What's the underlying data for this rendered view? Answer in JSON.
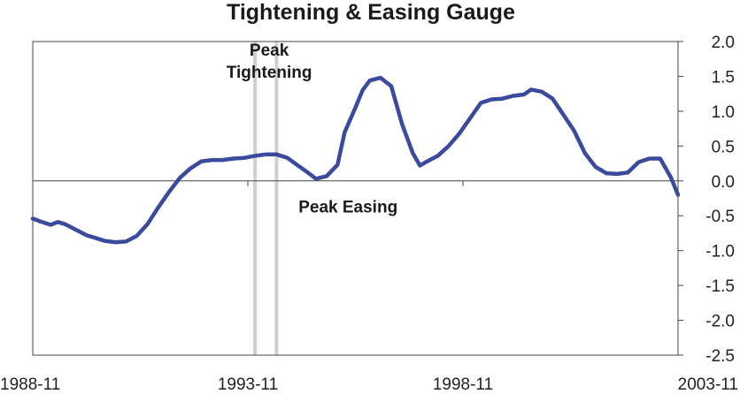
{
  "chart_data": {
    "type": "line",
    "title": "Tightening & Easing Gauge",
    "xlabel": "",
    "ylabel": "",
    "x_start": "1988-11",
    "x_end": "2003-11",
    "x_tick_labels": [
      "1988-11",
      "1993-11",
      "1998-11",
      "2003-11"
    ],
    "ylim": [
      -2.5,
      2.0
    ],
    "y_ticks": [
      2.0,
      1.5,
      1.0,
      0.5,
      0.0,
      -0.5,
      -1.0,
      -1.5,
      -2.0,
      -2.5
    ],
    "y_tick_labels": [
      "2.0",
      "1.5",
      "1.0",
      "0.5",
      "0.0",
      "-0.5",
      "-1.0",
      "-1.5",
      "-2.0",
      "-2.5"
    ],
    "grid": false,
    "zero_line": true,
    "line_color": "#3a4a9c",
    "band_color": "#d0d0d0",
    "vertical_markers": [
      "1994-01",
      "1994-07"
    ],
    "annotations": [
      {
        "text": "Peak",
        "x": "1994-01",
        "y": 1.8
      },
      {
        "text": "Tightening",
        "x": "1994-01",
        "y": 1.48
      },
      {
        "text": "Peak Easing",
        "x": "1995-11",
        "y": -0.45
      }
    ],
    "series": [
      {
        "points": [
          [
            "1988-11",
            -0.54
          ],
          [
            "1989-01",
            -0.58
          ],
          [
            "1989-04",
            -0.63
          ],
          [
            "1989-06",
            -0.59
          ],
          [
            "1989-08",
            -0.62
          ],
          [
            "1989-11",
            -0.7
          ],
          [
            "1990-02",
            -0.78
          ],
          [
            "1990-04",
            -0.81
          ],
          [
            "1990-07",
            -0.86
          ],
          [
            "1990-10",
            -0.88
          ],
          [
            "1991-01",
            -0.87
          ],
          [
            "1991-04",
            -0.79
          ],
          [
            "1991-07",
            -0.62
          ],
          [
            "1991-10",
            -0.38
          ],
          [
            "1992-01",
            -0.16
          ],
          [
            "1992-04",
            0.04
          ],
          [
            "1992-07",
            0.18
          ],
          [
            "1992-10",
            0.28
          ],
          [
            "1993-01",
            0.3
          ],
          [
            "1993-04",
            0.3
          ],
          [
            "1993-07",
            0.32
          ],
          [
            "1993-10",
            0.33
          ],
          [
            "1994-01",
            0.36
          ],
          [
            "1994-04",
            0.38
          ],
          [
            "1994-07",
            0.38
          ],
          [
            "1994-10",
            0.33
          ],
          [
            "1995-01",
            0.22
          ],
          [
            "1995-04",
            0.11
          ],
          [
            "1995-06",
            0.03
          ],
          [
            "1995-09",
            0.07
          ],
          [
            "1995-12",
            0.23
          ],
          [
            "1996-02",
            0.7
          ],
          [
            "1996-05",
            1.05
          ],
          [
            "1996-07",
            1.3
          ],
          [
            "1996-09",
            1.44
          ],
          [
            "1996-12",
            1.48
          ],
          [
            "1997-03",
            1.36
          ],
          [
            "1997-06",
            0.82
          ],
          [
            "1997-09",
            0.4
          ],
          [
            "1997-11",
            0.22
          ],
          [
            "1998-01",
            0.28
          ],
          [
            "1998-04",
            0.36
          ],
          [
            "1998-07",
            0.5
          ],
          [
            "1998-10",
            0.68
          ],
          [
            "1999-01",
            0.9
          ],
          [
            "1999-04",
            1.12
          ],
          [
            "1999-07",
            1.17
          ],
          [
            "1999-10",
            1.18
          ],
          [
            "2000-01",
            1.22
          ],
          [
            "2000-04",
            1.24
          ],
          [
            "2000-06",
            1.31
          ],
          [
            "2000-09",
            1.28
          ],
          [
            "2000-12",
            1.18
          ],
          [
            "2001-03",
            0.95
          ],
          [
            "2001-06",
            0.72
          ],
          [
            "2001-09",
            0.4
          ],
          [
            "2001-12",
            0.2
          ],
          [
            "2002-03",
            0.11
          ],
          [
            "2002-06",
            0.1
          ],
          [
            "2002-09",
            0.12
          ],
          [
            "2002-12",
            0.27
          ],
          [
            "2003-03",
            0.32
          ],
          [
            "2003-06",
            0.32
          ],
          [
            "2003-09",
            0.05
          ],
          [
            "2003-11",
            -0.2
          ]
        ]
      }
    ]
  }
}
